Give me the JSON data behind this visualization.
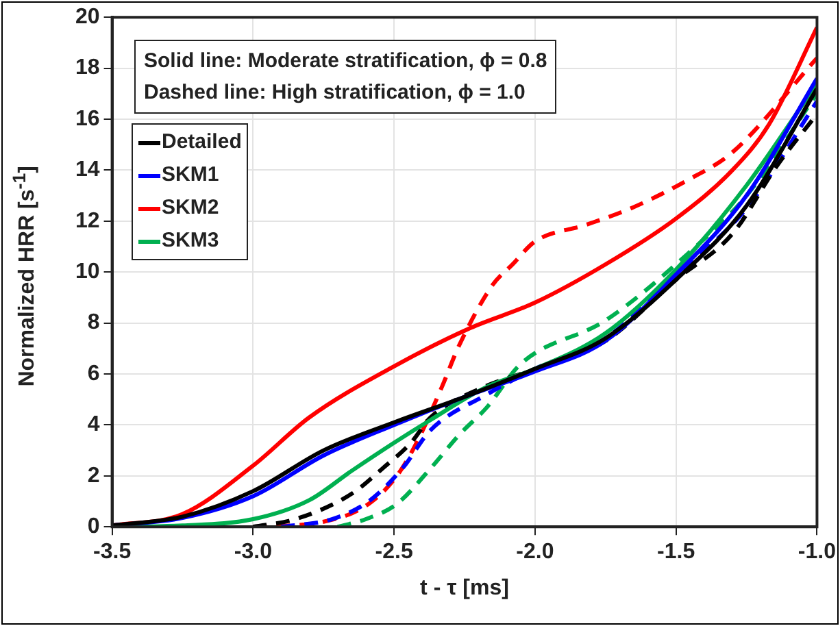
{
  "chart_data": {
    "type": "line",
    "xlabel": "t - τ [ms]",
    "ylabel": "Normalized HRR [s$^{-1}$]",
    "annotations": [
      "Solid line: Moderate stratification, ϕ = 0.8",
      "Dashed line: High stratification, ϕ = 1.0"
    ],
    "xlim": [
      -3.5,
      -1.0
    ],
    "xticks": [
      {
        "value": -3.5,
        "label": "-3.5"
      },
      {
        "value": -3.0,
        "label": "-3.0"
      },
      {
        "value": -2.5,
        "label": "-2.5"
      },
      {
        "value": -2.0,
        "label": "-2.0"
      },
      {
        "value": -1.5,
        "label": "-1.5"
      },
      {
        "value": -1.0,
        "label": "-1.0"
      }
    ],
    "ylim": [
      0,
      20
    ],
    "yticks": [
      0,
      2,
      4,
      6,
      8,
      10,
      12,
      14,
      16,
      18,
      20
    ],
    "grid": true,
    "legend": "top left",
    "marker": "none",
    "series": [
      {
        "name": "Detailed",
        "color": "#000000",
        "line_style": "solid",
        "x": [
          -3.5,
          -3.25,
          -3.0,
          -2.75,
          -2.5,
          -2.25,
          -2.0,
          -1.75,
          -1.5,
          -1.25,
          -1.0
        ],
        "values": [
          0.05,
          0.4,
          1.4,
          3.0,
          4.1,
          5.1,
          6.2,
          7.4,
          9.7,
          12.6,
          17.2
        ]
      },
      {
        "name": "SKM1",
        "color": "#0000ff",
        "line_style": "solid",
        "x": [
          -3.5,
          -3.25,
          -3.0,
          -2.75,
          -2.5,
          -2.25,
          -2.0,
          -1.75,
          -1.5,
          -1.25,
          -1.0
        ],
        "values": [
          0.05,
          0.35,
          1.2,
          2.8,
          4.0,
          5.1,
          6.1,
          7.3,
          9.9,
          13.0,
          17.6
        ]
      },
      {
        "name": "SKM2",
        "color": "#ff0000",
        "line_style": "solid",
        "x": [
          -3.5,
          -3.25,
          -3.0,
          -2.8,
          -2.5,
          -2.23,
          -2.0,
          -1.75,
          -1.5,
          -1.3,
          -1.17,
          -1.0
        ],
        "values": [
          0.05,
          0.5,
          2.4,
          4.3,
          6.3,
          7.8,
          8.8,
          10.3,
          12.1,
          14.0,
          15.8,
          19.6
        ]
      },
      {
        "name": "SKM3",
        "color": "#00b050",
        "line_style": "solid",
        "x": [
          -3.5,
          -3.25,
          -3.0,
          -2.8,
          -2.65,
          -2.5,
          -2.37,
          -2.17,
          -2.0,
          -1.75,
          -1.5,
          -1.25,
          -1.0
        ],
        "values": [
          0.0,
          0.05,
          0.3,
          1.05,
          2.2,
          3.3,
          4.2,
          5.5,
          6.2,
          7.6,
          10.1,
          13.4,
          17.4
        ]
      },
      {
        "color": "#000000",
        "line_style": "dashed",
        "x": [
          -3.0,
          -2.85,
          -2.65,
          -2.54,
          -2.44,
          -2.37,
          -2.2,
          -2.0,
          -1.75,
          -1.5,
          -1.3,
          -1.14,
          -1.0
        ],
        "values": [
          0.0,
          0.3,
          1.3,
          2.3,
          3.3,
          4.3,
          5.4,
          6.2,
          7.3,
          9.7,
          11.5,
          14.2,
          16.2
        ]
      },
      {
        "color": "#0000ff",
        "line_style": "dashed",
        "x": [
          -2.9,
          -2.72,
          -2.59,
          -2.47,
          -2.37,
          -2.17,
          -2.0,
          -1.75,
          -1.5,
          -1.25,
          -1.0
        ],
        "values": [
          0.0,
          0.3,
          1.0,
          2.3,
          3.8,
          5.2,
          6.2,
          7.4,
          9.9,
          12.5,
          16.7
        ]
      },
      {
        "color": "#ff0000",
        "line_style": "dashed",
        "x": [
          -3.0,
          -2.75,
          -2.59,
          -2.49,
          -2.42,
          -2.33,
          -2.27,
          -2.15,
          -2.08,
          -2.0,
          -1.82,
          -1.66,
          -1.46,
          -1.3,
          -1.0
        ],
        "values": [
          0.0,
          0.2,
          0.9,
          2.0,
          3.3,
          5.5,
          7.1,
          9.5,
          10.3,
          11.2,
          11.85,
          12.5,
          13.6,
          14.7,
          18.4
        ]
      },
      {
        "color": "#00b050",
        "line_style": "dashed",
        "x": [
          -2.7,
          -2.6,
          -2.49,
          -2.37,
          -2.27,
          -2.17,
          -2.05,
          -1.75,
          -1.46,
          -1.25,
          -1.0
        ],
        "values": [
          0.0,
          0.3,
          0.9,
          2.3,
          3.6,
          4.7,
          6.4,
          8.1,
          10.7,
          13.0,
          17.0
        ]
      }
    ]
  }
}
